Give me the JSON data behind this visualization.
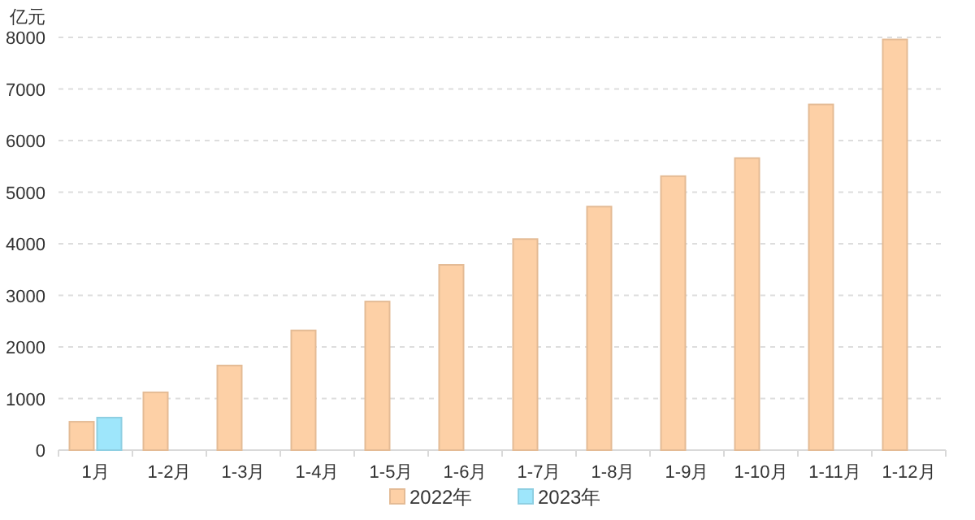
{
  "chart_data": {
    "type": "bar",
    "ylabel": "亿元",
    "categories": [
      "1月",
      "1-2月",
      "1-3月",
      "1-4月",
      "1-5月",
      "1-6月",
      "1-7月",
      "1-8月",
      "1-9月",
      "1-10月",
      "1-11月",
      "1-12月"
    ],
    "series": [
      {
        "name": "2022年",
        "color": "#fdd0a6",
        "values": [
          550,
          1120,
          1640,
          2320,
          2880,
          3590,
          4090,
          4720,
          5310,
          5660,
          6700,
          7960
        ]
      },
      {
        "name": "2023年",
        "color": "#9ee6fb",
        "values": [
          630,
          null,
          null,
          null,
          null,
          null,
          null,
          null,
          null,
          null,
          null,
          null
        ]
      }
    ],
    "ylim": [
      0,
      8000
    ],
    "yticks": [
      0,
      1000,
      2000,
      3000,
      4000,
      5000,
      6000,
      7000,
      8000
    ],
    "grid": "y",
    "legend": "bottom"
  }
}
